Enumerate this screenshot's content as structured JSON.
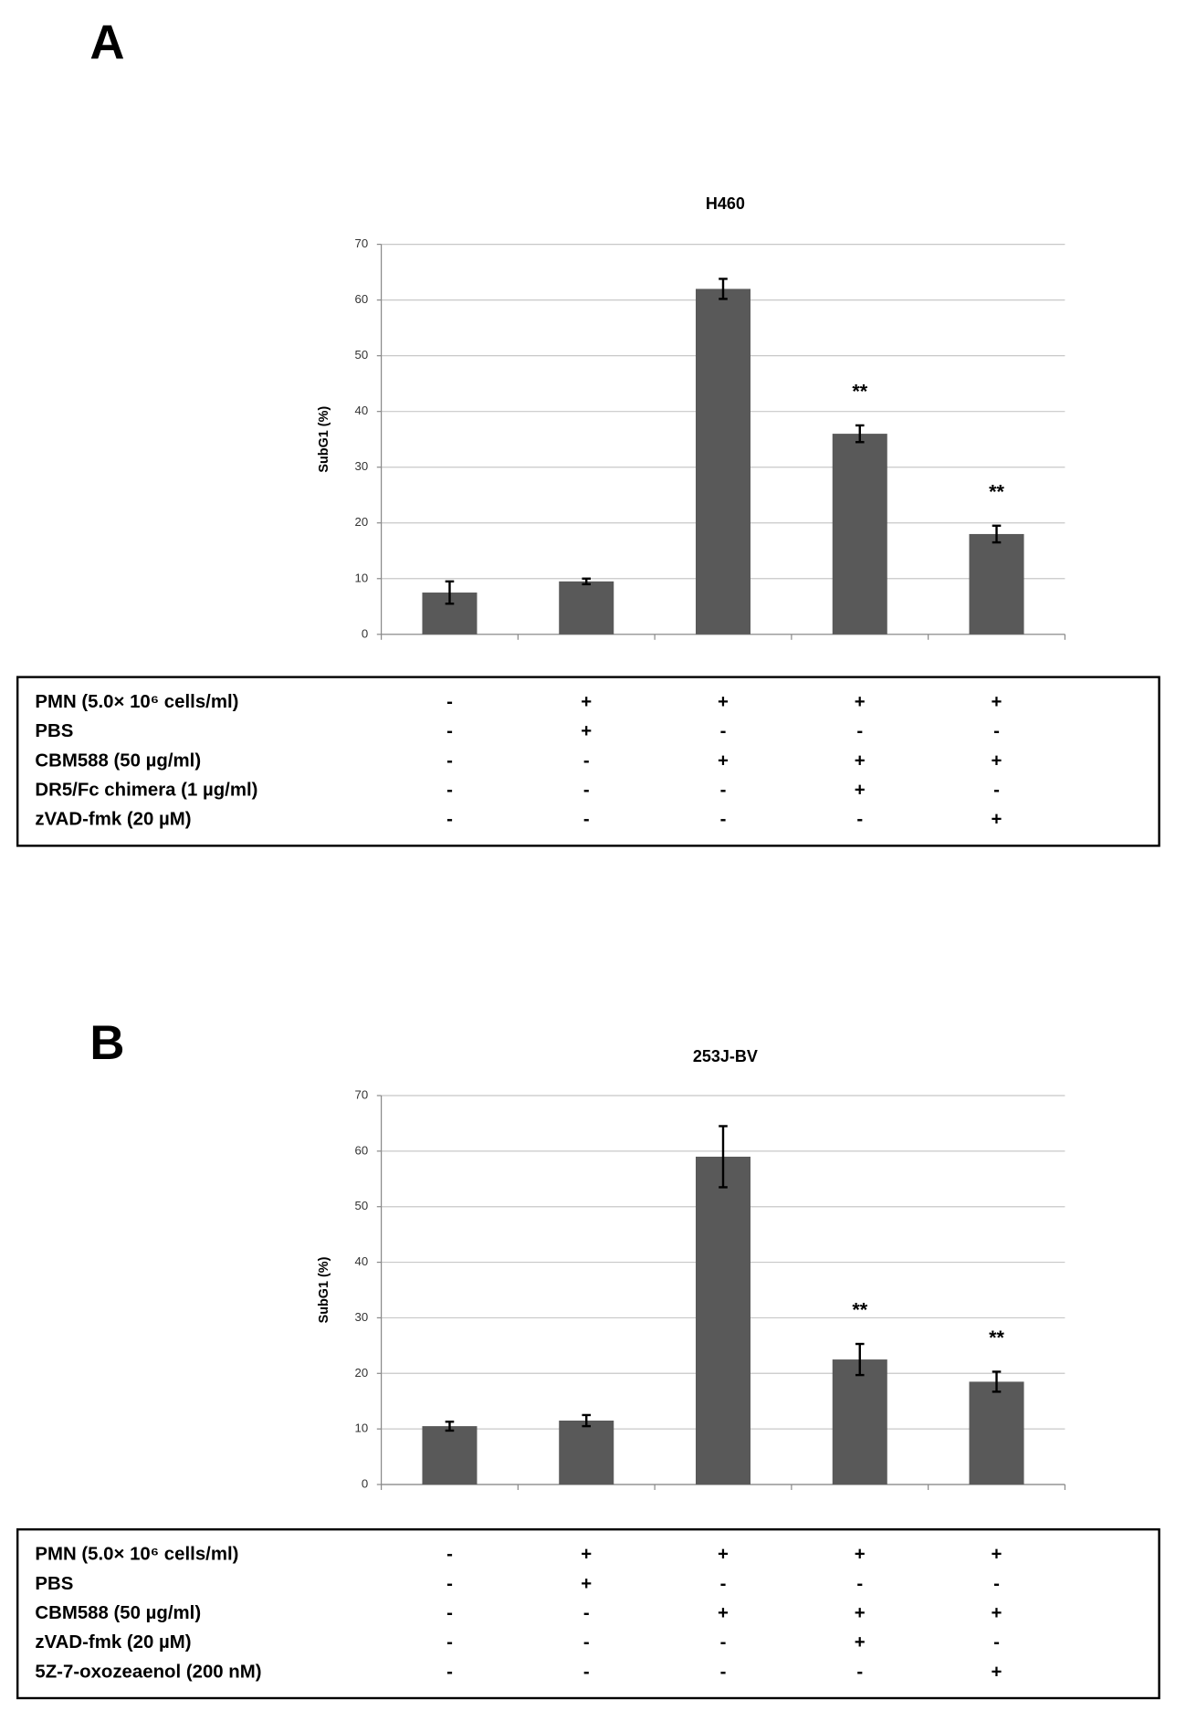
{
  "chart_data": [
    {
      "type": "bar",
      "panel": "A",
      "title": "H460",
      "ylabel": "SubG1 (%)",
      "categories": [
        null,
        null,
        null,
        null,
        null
      ],
      "values": [
        7.5,
        9.5,
        62,
        36,
        18
      ],
      "errors": [
        2,
        0.5,
        1.8,
        1.5,
        1.5
      ],
      "color": "#595959",
      "ylim": [
        0,
        70
      ],
      "yticks": [
        0,
        10,
        20,
        30,
        40,
        50,
        60,
        70
      ],
      "grid": true,
      "annotations": [
        {
          "bar": 3,
          "text": "**"
        },
        {
          "bar": 4,
          "text": "**"
        }
      ],
      "table": {
        "rows": [
          {
            "label": "PMN (5.0× 10⁶ cells/ml)",
            "values": [
              "-",
              "+",
              "+",
              "+",
              "+"
            ]
          },
          {
            "label": "PBS",
            "values": [
              "-",
              "+",
              "-",
              "-",
              "-"
            ]
          },
          {
            "label": "CBM588 (50 µg/ml)",
            "values": [
              "-",
              "-",
              "+",
              "+",
              "+"
            ]
          },
          {
            "label": "DR5/Fc chimera (1 µg/ml)",
            "values": [
              "-",
              "-",
              "-",
              "+",
              "-"
            ]
          },
          {
            "label": "zVAD-fmk (20 µM)",
            "values": [
              "-",
              "-",
              "-",
              "-",
              "+"
            ]
          }
        ]
      }
    },
    {
      "type": "bar",
      "panel": "B",
      "title": "253J-BV",
      "ylabel": "SubG1 (%)",
      "categories": [
        null,
        null,
        null,
        null,
        null
      ],
      "values": [
        10.5,
        11.5,
        59,
        22.5,
        18.5
      ],
      "errors": [
        0.8,
        1,
        5.5,
        2.8,
        1.8
      ],
      "color": "#595959",
      "ylim": [
        0,
        70
      ],
      "yticks": [
        0,
        10,
        20,
        30,
        40,
        50,
        60,
        70
      ],
      "grid": true,
      "annotations": [
        {
          "bar": 3,
          "text": "**"
        },
        {
          "bar": 4,
          "text": "**"
        }
      ],
      "table": {
        "rows": [
          {
            "label": "PMN (5.0× 10⁶ cells/ml)",
            "values": [
              "-",
              "+",
              "+",
              "+",
              "+"
            ]
          },
          {
            "label": "PBS",
            "values": [
              "-",
              "+",
              "-",
              "-",
              "-"
            ]
          },
          {
            "label": "CBM588 (50 µg/ml)",
            "values": [
              "-",
              "-",
              "+",
              "+",
              "+"
            ]
          },
          {
            "label": "zVAD-fmk (20 µM)",
            "values": [
              "-",
              "-",
              "-",
              "+",
              "-"
            ]
          },
          {
            "label": "5Z-7-oxozeaenol (200 nM)",
            "values": [
              "-",
              "-",
              "-",
              "-",
              "+"
            ]
          }
        ]
      }
    }
  ]
}
